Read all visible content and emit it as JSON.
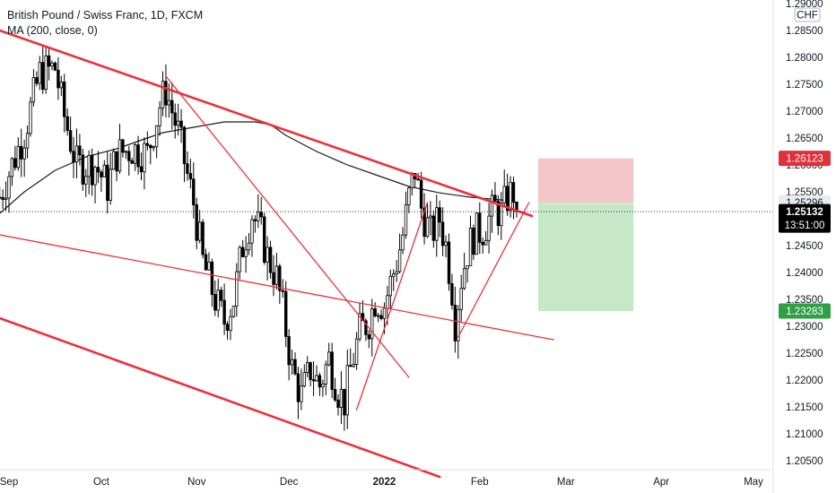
{
  "legend": {
    "title": "British Pound / Swiss Franc, 1D, FXCM",
    "indicator": "MA (200, close, 0)"
  },
  "currency_badge": "CHF",
  "colors": {
    "up": "#ffffff",
    "down": "#000000",
    "ma": "#1c1c1c",
    "trend_red": "#ef2f3a",
    "stop_zone": "#f3c7c9",
    "target_zone": "#c7e8c6",
    "stop_tag": "#e0303a",
    "target_tag": "#2ea043",
    "current_tag": "#000000",
    "ma_tag": "#e9ebef"
  },
  "chart_data": {
    "type": "candlestick",
    "title": "British Pound / Swiss Franc, 1D, FXCM",
    "y_range": [
      1.2015,
      1.2915
    ],
    "y_ticks": [
      "1.29000",
      "1.28500",
      "1.28000",
      "1.27500",
      "1.27000",
      "1.26500",
      "1.26000",
      "1.25500",
      "1.25000",
      "1.24500",
      "1.24000",
      "1.23500",
      "1.23000",
      "1.22500",
      "1.22000",
      "1.21500",
      "1.21000",
      "1.20500"
    ],
    "x_ticks": [
      {
        "label": "Sep",
        "day": 0
      },
      {
        "label": "Oct",
        "day": 30
      },
      {
        "label": "Nov",
        "day": 61
      },
      {
        "label": "Dec",
        "day": 91
      },
      {
        "label": "2022",
        "day": 122,
        "bold": true
      },
      {
        "label": "Feb",
        "day": 153
      },
      {
        "label": "Mar",
        "day": 181
      },
      {
        "label": "Apr",
        "day": 212
      },
      {
        "label": "May",
        "day": 242
      }
    ],
    "price_labels": {
      "stop": "1.26123",
      "ma": "1.25296",
      "current": "1.25132",
      "countdown": "13:51:00",
      "target": "1.23283"
    },
    "candle_anchors": [
      [
        -3,
        1.254
      ],
      [
        5,
        1.266
      ],
      [
        10,
        1.277
      ],
      [
        15,
        1.278
      ],
      [
        18,
        1.269
      ],
      [
        22,
        1.26
      ],
      [
        28,
        1.26
      ],
      [
        32,
        1.256
      ],
      [
        35,
        1.262
      ],
      [
        40,
        1.263
      ],
      [
        45,
        1.262
      ],
      [
        49,
        1.271
      ],
      [
        51,
        1.274
      ],
      [
        55,
        1.266
      ],
      [
        58,
        1.258
      ],
      [
        60,
        1.253
      ],
      [
        63,
        1.242
      ],
      [
        67,
        1.235
      ],
      [
        70,
        1.231
      ],
      [
        73,
        1.235
      ],
      [
        76,
        1.245
      ],
      [
        79,
        1.251
      ],
      [
        82,
        1.247
      ],
      [
        84,
        1.243
      ],
      [
        87,
        1.239
      ],
      [
        89,
        1.233
      ],
      [
        92,
        1.222
      ],
      [
        95,
        1.217
      ],
      [
        98,
        1.222
      ],
      [
        101,
        1.219
      ],
      [
        104,
        1.224
      ],
      [
        107,
        1.218
      ],
      [
        109,
        1.216
      ],
      [
        111,
        1.222
      ],
      [
        114,
        1.229
      ],
      [
        117,
        1.231
      ],
      [
        119,
        1.235
      ],
      [
        122,
        1.234
      ],
      [
        124,
        1.238
      ],
      [
        126,
        1.242
      ],
      [
        128,
        1.247
      ],
      [
        130,
        1.254
      ],
      [
        132,
        1.259
      ],
      [
        134,
        1.252
      ],
      [
        137,
        1.247
      ],
      [
        140,
        1.25
      ],
      [
        142,
        1.245
      ],
      [
        144,
        1.237
      ],
      [
        145,
        1.231
      ],
      [
        147,
        1.239
      ],
      [
        149,
        1.244
      ],
      [
        151,
        1.247
      ],
      [
        154,
        1.248
      ],
      [
        156,
        1.25
      ],
      [
        158,
        1.252
      ],
      [
        160,
        1.251
      ],
      [
        162,
        1.254
      ],
      [
        164,
        1.255
      ],
      [
        165,
        1.2513
      ]
    ],
    "ma_200": [
      [
        -3,
        1.251
      ],
      [
        5,
        1.255
      ],
      [
        15,
        1.259
      ],
      [
        25,
        1.2615
      ],
      [
        35,
        1.263
      ],
      [
        45,
        1.265
      ],
      [
        50,
        1.266
      ],
      [
        60,
        1.267
      ],
      [
        70,
        1.268
      ],
      [
        80,
        1.268
      ],
      [
        85,
        1.2675
      ],
      [
        90,
        1.2655
      ],
      [
        100,
        1.2625
      ],
      [
        110,
        1.26
      ],
      [
        120,
        1.258
      ],
      [
        130,
        1.256
      ],
      [
        140,
        1.2548
      ],
      [
        150,
        1.254
      ],
      [
        160,
        1.2535
      ],
      [
        165,
        1.253
      ]
    ],
    "trendlines": [
      {
        "name": "channel-upper",
        "from": [
          -3,
          1.285
        ],
        "to": [
          170,
          1.2505
        ],
        "width": 2.6
      },
      {
        "name": "channel-lower",
        "from": [
          -3,
          1.2315
        ],
        "to": [
          140,
          1.202
        ],
        "width": 2.6
      },
      {
        "name": "mid-channel",
        "from": [
          -3,
          1.247
        ],
        "to": [
          177,
          1.2275
        ],
        "width": 1.3
      },
      {
        "name": "descending-line",
        "from": [
          51,
          1.2765
        ],
        "to": [
          130,
          1.2205
        ],
        "width": 1.3
      },
      {
        "name": "rising-line-1",
        "from": [
          113,
          1.2145
        ],
        "to": [
          136,
          1.253
        ],
        "width": 1.3
      },
      {
        "name": "rising-line-2",
        "from": [
          146,
          1.228
        ],
        "to": [
          169,
          1.253
        ],
        "width": 1.3
      }
    ],
    "position": {
      "start_day": 172,
      "end_day": 203,
      "entry": 1.25296,
      "stop": 1.26123,
      "target": 1.23283
    },
    "current_price": 1.25132
  }
}
